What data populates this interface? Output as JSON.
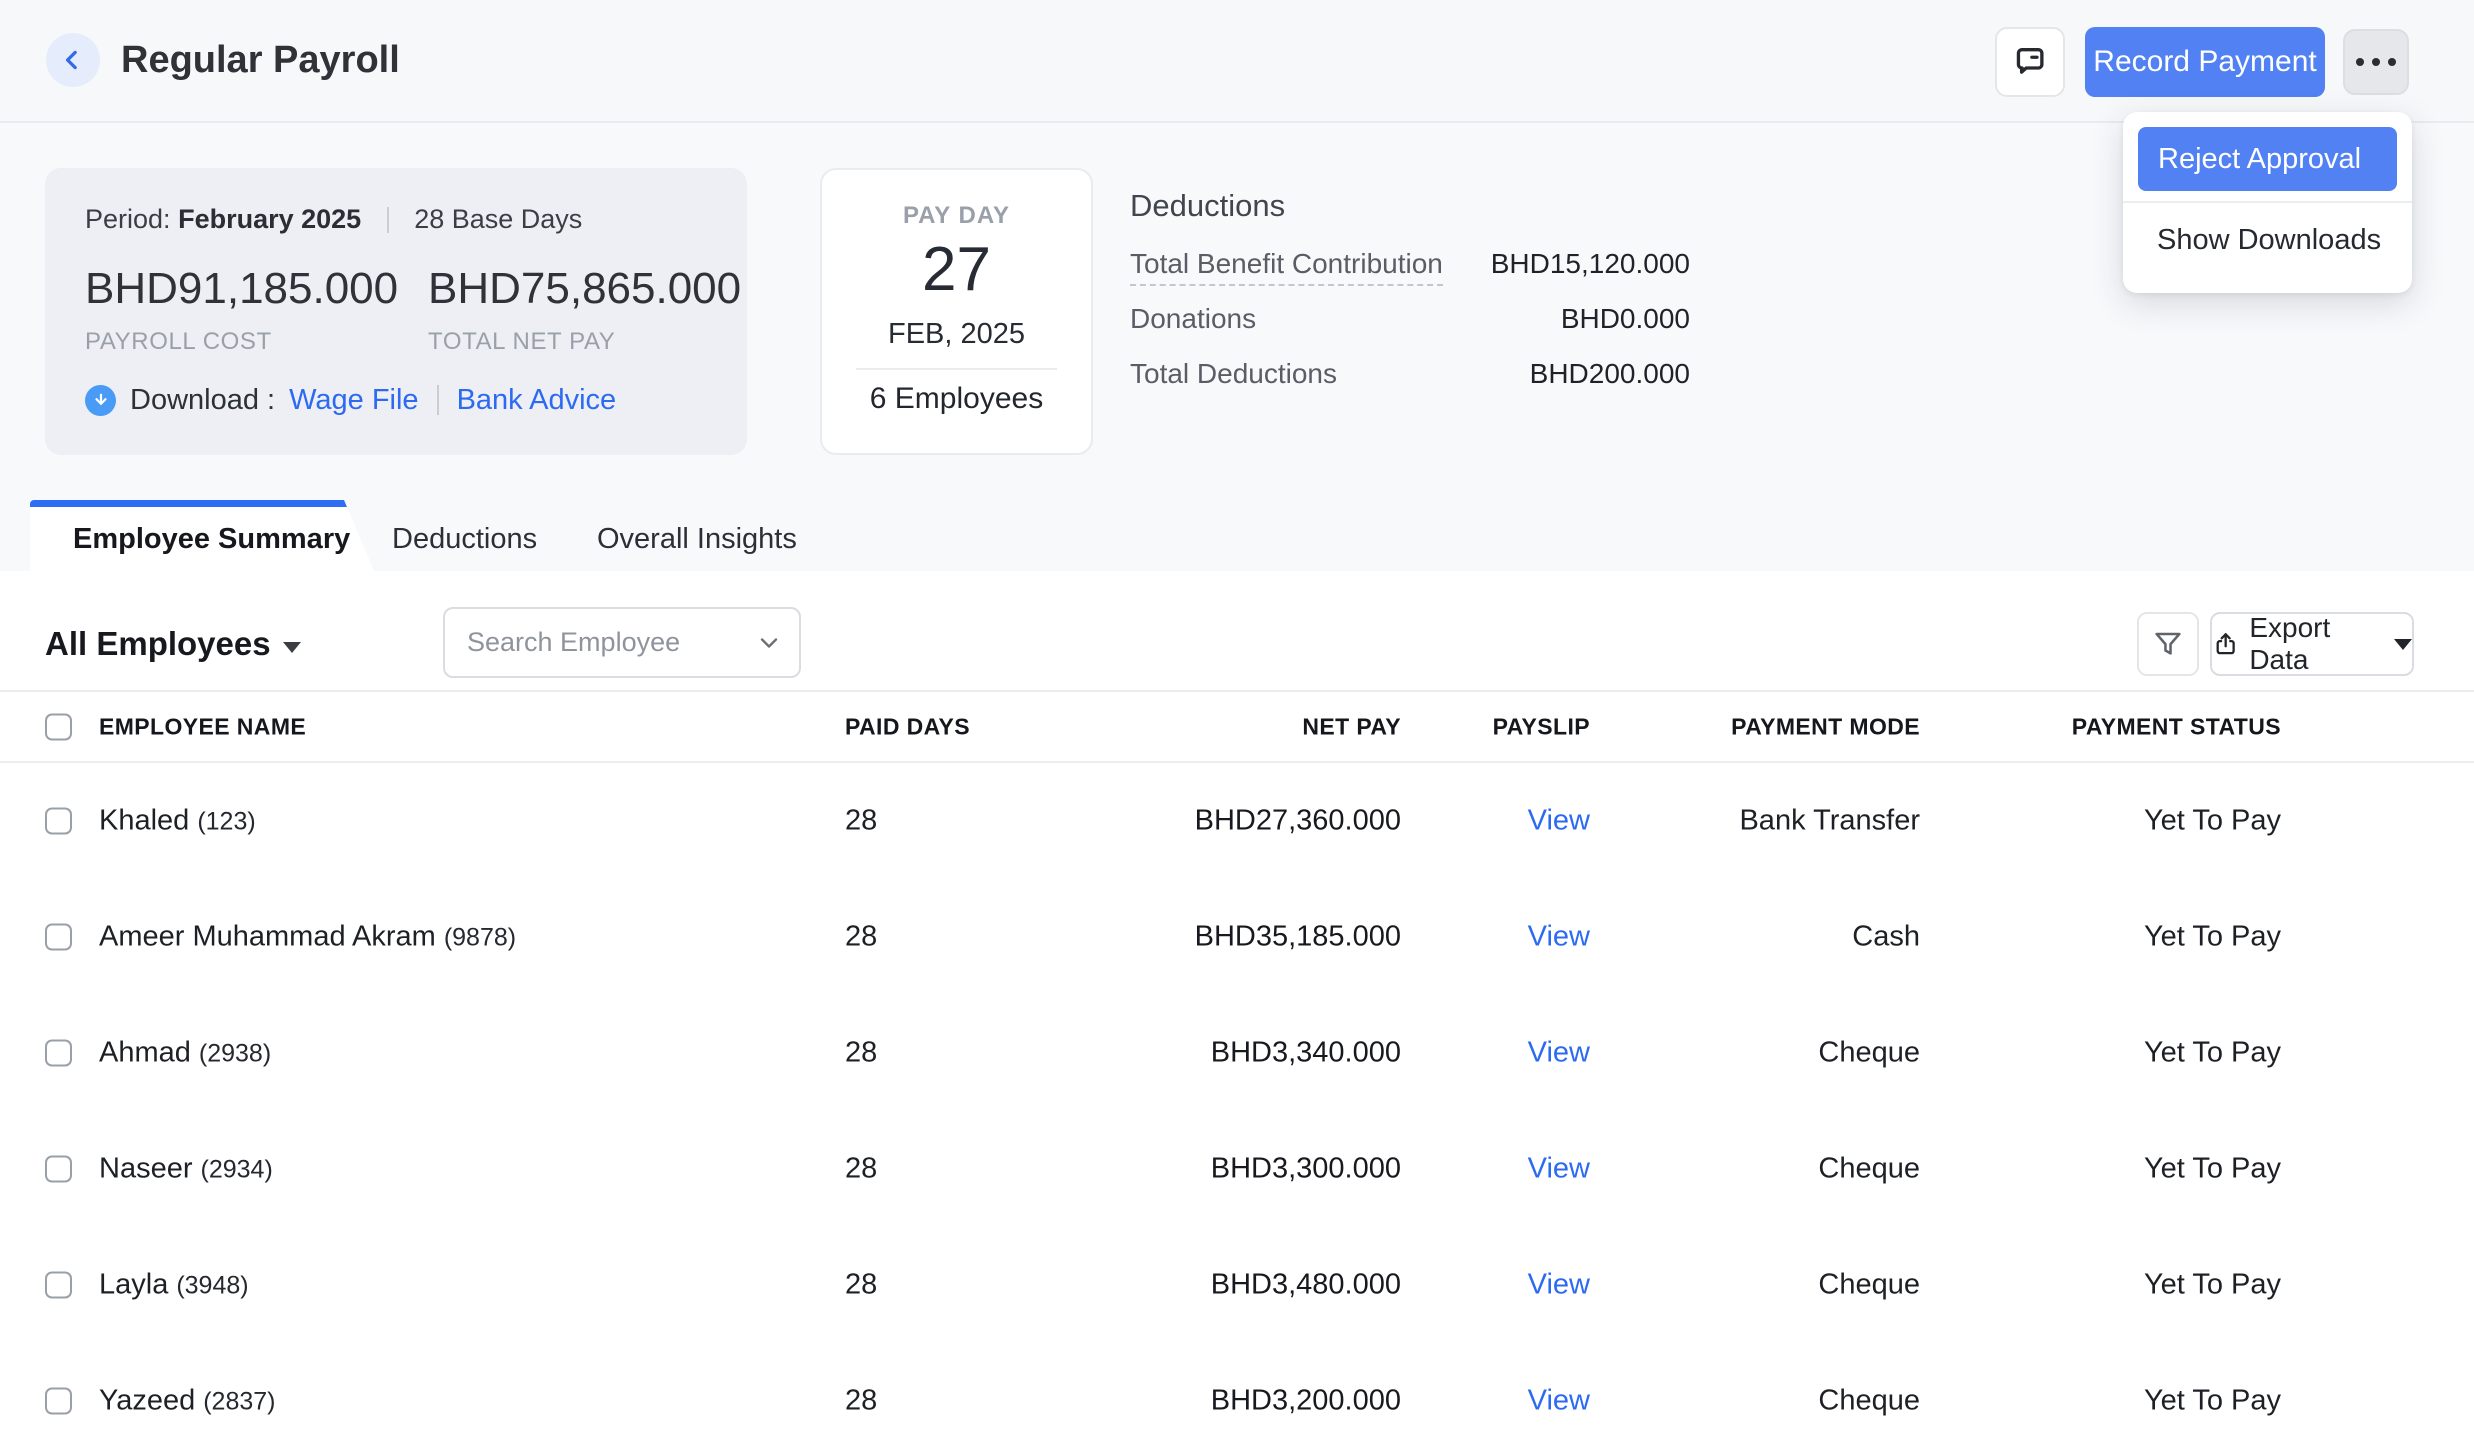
{
  "colors": {
    "accent_blue": "#5181f2",
    "link_blue": "#2c6af2",
    "tab_blue": "#2f6ef4",
    "download_circle_blue": "#4a9bf5"
  },
  "header": {
    "title": "Regular Payroll",
    "record_payment_label": "Record Payment",
    "menu": {
      "items": [
        {
          "label": "Reject Approval",
          "highlighted": true
        },
        {
          "label": "Show Downloads",
          "highlighted": false
        }
      ]
    }
  },
  "summary": {
    "period_label": "Period:",
    "period_value": "February 2025",
    "base_days": "28 Base Days",
    "payroll_cost": {
      "amount": "BHD91,185.000",
      "label": "PAYROLL COST"
    },
    "total_net_pay": {
      "amount": "BHD75,865.000",
      "label": "TOTAL NET PAY"
    },
    "download_label": "Download :",
    "download_links": [
      "Wage File",
      "Bank Advice"
    ]
  },
  "payday": {
    "label": "PAY DAY",
    "day": "27",
    "month_year": "FEB, 2025",
    "employees": "6 Employees"
  },
  "deductions": {
    "title": "Deductions",
    "rows": [
      {
        "label": "Total Benefit Contribution",
        "value": "BHD15,120.000"
      },
      {
        "label": "Donations",
        "value": "BHD0.000"
      },
      {
        "label": "Total Deductions",
        "value": "BHD200.000"
      }
    ]
  },
  "tabs": [
    {
      "label": "Employee Summary",
      "active": true
    },
    {
      "label": "Deductions",
      "active": false
    },
    {
      "label": "Overall Insights",
      "active": false
    }
  ],
  "toolbar": {
    "employee_filter": "All Employees",
    "search_placeholder": "Search Employee",
    "export_label": "Export Data"
  },
  "table": {
    "columns": [
      "EMPLOYEE NAME",
      "PAID DAYS",
      "NET PAY",
      "PAYSLIP",
      "PAYMENT MODE",
      "PAYMENT STATUS"
    ],
    "rows": [
      {
        "name": "Khaled",
        "id": "(123)",
        "paid_days": "28",
        "net_pay": "BHD27,360.000",
        "payslip": "View",
        "payment_mode": "Bank Transfer",
        "payment_status": "Yet To Pay"
      },
      {
        "name": "Ameer Muhammad Akram",
        "id": "(9878)",
        "paid_days": "28",
        "net_pay": "BHD35,185.000",
        "payslip": "View",
        "payment_mode": "Cash",
        "payment_status": "Yet To Pay"
      },
      {
        "name": "Ahmad",
        "id": "(2938)",
        "paid_days": "28",
        "net_pay": "BHD3,340.000",
        "payslip": "View",
        "payment_mode": "Cheque",
        "payment_status": "Yet To Pay"
      },
      {
        "name": "Naseer",
        "id": "(2934)",
        "paid_days": "28",
        "net_pay": "BHD3,300.000",
        "payslip": "View",
        "payment_mode": "Cheque",
        "payment_status": "Yet To Pay"
      },
      {
        "name": "Layla",
        "id": "(3948)",
        "paid_days": "28",
        "net_pay": "BHD3,480.000",
        "payslip": "View",
        "payment_mode": "Cheque",
        "payment_status": "Yet To Pay"
      },
      {
        "name": "Yazeed",
        "id": "(2837)",
        "paid_days": "28",
        "net_pay": "BHD3,200.000",
        "payslip": "View",
        "payment_mode": "Cheque",
        "payment_status": "Yet To Pay"
      }
    ]
  }
}
